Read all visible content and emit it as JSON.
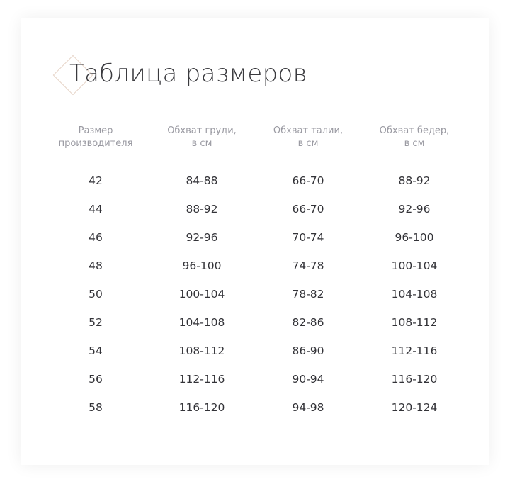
{
  "title": "Таблица размеров",
  "accent_color": "#e6d3c6",
  "table": {
    "headers": [
      [
        "Размер",
        "производителя"
      ],
      [
        "Обхват груди,",
        "в см"
      ],
      [
        "Обхват талии,",
        "в см"
      ],
      [
        "Обхват бедер,",
        "в см"
      ]
    ],
    "rows": [
      [
        "42",
        "84-88",
        "66-70",
        "88-92"
      ],
      [
        "44",
        "88-92",
        "66-70",
        "92-96"
      ],
      [
        "46",
        "92-96",
        "70-74",
        "96-100"
      ],
      [
        "48",
        "96-100",
        "74-78",
        "100-104"
      ],
      [
        "50",
        "100-104",
        "78-82",
        "104-108"
      ],
      [
        "52",
        "104-108",
        "82-86",
        "108-112"
      ],
      [
        "54",
        "108-112",
        "86-90",
        "112-116"
      ],
      [
        "56",
        "112-116",
        "90-94",
        "116-120"
      ],
      [
        "58",
        "116-120",
        "94-98",
        "120-124"
      ]
    ]
  }
}
